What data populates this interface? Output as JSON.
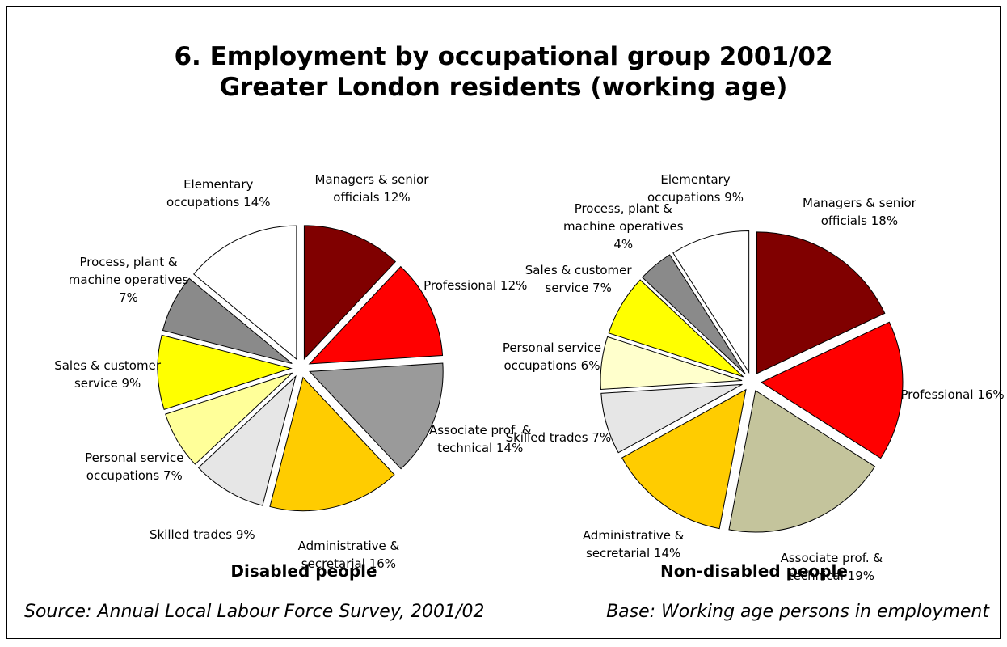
{
  "title_lines": [
    "6. Employment by occupational group 2001/02",
    "Greater London residents (working age)"
  ],
  "source": "Source: Annual Local Labour Force Survey, 2001/02",
  "base": "Base: Working age persons in employment",
  "chart_data": [
    {
      "type": "pie",
      "title": "Disabled people",
      "categories": [
        "Managers & senior officials",
        "Professional",
        "Associate prof. & technical",
        "Administrative & secretarial",
        "Skilled trades",
        "Personal service occupations",
        "Sales & customer service",
        "Process, plant & machine operatives",
        "Elementary occupations"
      ],
      "values": [
        12,
        12,
        14,
        16,
        9,
        7,
        9,
        7,
        14
      ],
      "value_labels": [
        "12%",
        "12%",
        "14%",
        "16%",
        "9%",
        "7%",
        "9%",
        "7%",
        "14%"
      ],
      "colors": [
        "#800000",
        "#ff0000",
        "#9a9a9a",
        "#ffcc00",
        "#e6e6e6",
        "#ffff99",
        "#ffff00",
        "#8a8a8a",
        "#ffffff"
      ]
    },
    {
      "type": "pie",
      "title": "Non-disabled people",
      "categories": [
        "Managers & senior officials",
        "Professional",
        "Associate prof. & technical",
        "Administrative & secretarial",
        "Skilled trades",
        "Personal service occupations",
        "Sales & customer service",
        "Process, plant & machine operatives",
        "Elementary occupations"
      ],
      "values": [
        18,
        16,
        19,
        14,
        7,
        6,
        7,
        4,
        9
      ],
      "value_labels": [
        "18%",
        "16%",
        "19%",
        "14%",
        "7%",
        "6%",
        "7%",
        "4%",
        "9%"
      ],
      "colors": [
        "#800000",
        "#ff0000",
        "#c4c49c",
        "#ffcc00",
        "#e6e6e6",
        "#ffffcc",
        "#ffff00",
        "#8a8a8a",
        "#ffffff"
      ]
    }
  ]
}
